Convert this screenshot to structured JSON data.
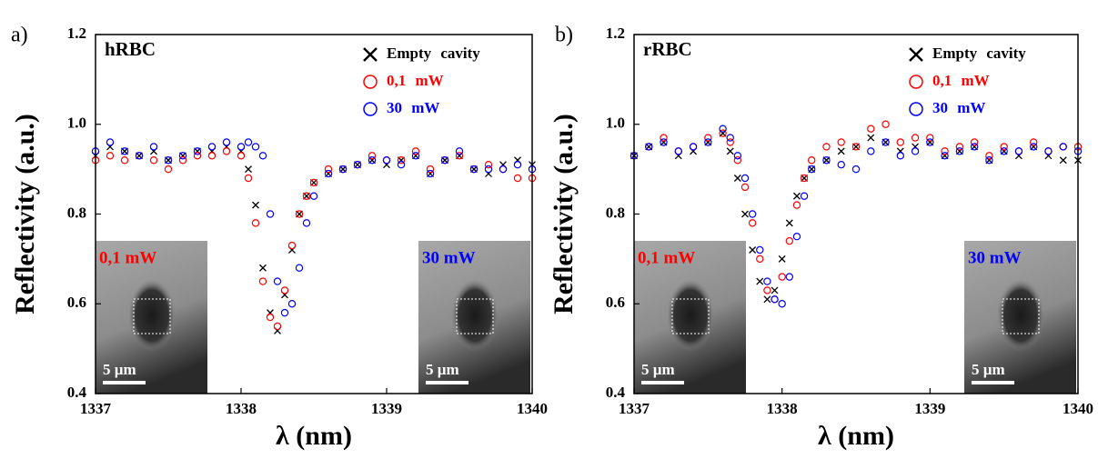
{
  "chart_data": [
    {
      "type": "scatter",
      "panel_label": "a)",
      "title": "hRBC",
      "xlabel": "λ (nm)",
      "ylabel": "Reflectivity (a.u.)",
      "x": [
        1337.0,
        1337.1,
        1337.2,
        1337.3,
        1337.4,
        1337.5,
        1337.6,
        1337.7,
        1337.8,
        1337.9,
        1338.0,
        1338.05,
        1338.1,
        1338.15,
        1338.2,
        1338.25,
        1338.3,
        1338.35,
        1338.4,
        1338.45,
        1338.5,
        1338.6,
        1338.7,
        1338.8,
        1338.9,
        1339.0,
        1339.1,
        1339.2,
        1339.3,
        1339.4,
        1339.5,
        1339.6,
        1339.7,
        1339.8,
        1339.9,
        1340.0
      ],
      "series": [
        {
          "name": "Empty cavity",
          "color": "#000000",
          "marker": "x",
          "values": [
            0.93,
            0.95,
            0.94,
            0.93,
            0.94,
            0.92,
            0.93,
            0.94,
            0.94,
            0.95,
            0.94,
            0.9,
            0.82,
            0.68,
            0.58,
            0.54,
            0.62,
            0.72,
            0.8,
            0.84,
            0.87,
            0.89,
            0.9,
            0.91,
            0.92,
            0.91,
            0.92,
            0.93,
            0.89,
            0.92,
            0.93,
            0.9,
            0.89,
            0.91,
            0.92,
            0.91
          ]
        },
        {
          "name": "0,1 mW",
          "color": "#ff0000",
          "marker": "circle",
          "values": [
            0.92,
            0.93,
            0.92,
            0.93,
            0.92,
            0.9,
            0.92,
            0.93,
            0.93,
            0.94,
            0.93,
            0.88,
            0.78,
            0.65,
            0.57,
            0.55,
            0.63,
            0.73,
            0.8,
            0.84,
            0.87,
            0.9,
            0.9,
            0.91,
            0.93,
            0.92,
            0.92,
            0.94,
            0.9,
            0.92,
            0.93,
            0.9,
            0.91,
            0.9,
            0.88,
            0.88
          ]
        },
        {
          "name": "30 mW",
          "color": "#0000ff",
          "marker": "circle",
          "values": [
            0.94,
            0.96,
            0.94,
            0.93,
            0.95,
            0.92,
            0.93,
            0.94,
            0.95,
            0.96,
            0.95,
            0.96,
            0.95,
            0.93,
            0.8,
            0.65,
            0.58,
            0.6,
            0.68,
            0.78,
            0.84,
            0.89,
            0.9,
            0.91,
            0.92,
            0.92,
            0.91,
            0.93,
            0.89,
            0.92,
            0.94,
            0.9,
            0.9,
            0.9,
            0.91,
            0.9
          ]
        }
      ],
      "xlim": [
        1337,
        1340
      ],
      "xticks": [
        1337,
        1338,
        1339,
        1340
      ],
      "ylim": [
        0.4,
        1.2
      ],
      "yticks": [
        0.4,
        0.6,
        0.8,
        {
          "value": 1,
          "label": "1.0"
        },
        1.2
      ],
      "insets": [
        {
          "label": "0,1 mW",
          "color": "#ff0000",
          "scale": "5 µm",
          "position": "left"
        },
        {
          "label": "30 mW",
          "color": "#0000ff",
          "scale": "5 µm",
          "position": "right"
        }
      ]
    },
    {
      "type": "scatter",
      "panel_label": "b)",
      "title": "rRBC",
      "xlabel": "λ (nm)",
      "ylabel": "Reflectivity (a.u.)",
      "x": [
        1337.0,
        1337.1,
        1337.2,
        1337.3,
        1337.4,
        1337.5,
        1337.6,
        1337.65,
        1337.7,
        1337.75,
        1337.8,
        1337.85,
        1337.9,
        1337.95,
        1338.0,
        1338.05,
        1338.1,
        1338.15,
        1338.2,
        1338.3,
        1338.4,
        1338.5,
        1338.6,
        1338.7,
        1338.8,
        1338.9,
        1339.0,
        1339.1,
        1339.2,
        1339.3,
        1339.4,
        1339.5,
        1339.6,
        1339.7,
        1339.8,
        1339.9,
        1340.0
      ],
      "series": [
        {
          "name": "Empty cavity",
          "color": "#000000",
          "marker": "x",
          "values": [
            0.93,
            0.95,
            0.96,
            0.93,
            0.94,
            0.96,
            0.98,
            0.94,
            0.88,
            0.8,
            0.72,
            0.65,
            0.61,
            0.63,
            0.7,
            0.78,
            0.84,
            0.88,
            0.9,
            0.92,
            0.94,
            0.95,
            0.97,
            0.96,
            0.94,
            0.95,
            0.96,
            0.93,
            0.94,
            0.95,
            0.92,
            0.94,
            0.93,
            0.95,
            0.93,
            0.92,
            0.92
          ]
        },
        {
          "name": "0,1 mW",
          "color": "#ff0000",
          "marker": "circle",
          "values": [
            0.93,
            0.95,
            0.97,
            0.94,
            0.95,
            0.97,
            0.98,
            0.96,
            0.92,
            0.86,
            0.78,
            0.7,
            0.63,
            0.61,
            0.66,
            0.74,
            0.82,
            0.88,
            0.92,
            0.95,
            0.96,
            0.95,
            0.99,
            1.0,
            0.96,
            0.97,
            0.97,
            0.94,
            0.95,
            0.96,
            0.93,
            0.95,
            0.94,
            0.96,
            0.94,
            0.95,
            0.95
          ]
        },
        {
          "name": "30 mW",
          "color": "#0000ff",
          "marker": "circle",
          "values": [
            0.93,
            0.95,
            0.96,
            0.94,
            0.95,
            0.96,
            0.99,
            0.97,
            0.93,
            0.88,
            0.8,
            0.72,
            0.65,
            0.61,
            0.6,
            0.66,
            0.75,
            0.84,
            0.9,
            0.92,
            0.91,
            0.9,
            0.94,
            0.96,
            0.93,
            0.94,
            0.96,
            0.93,
            0.94,
            0.95,
            0.92,
            0.94,
            0.94,
            0.95,
            0.94,
            0.95,
            0.94
          ]
        }
      ],
      "xlim": [
        1337,
        1340
      ],
      "xticks": [
        1337,
        1338,
        1339,
        1340
      ],
      "ylim": [
        0.4,
        1.2
      ],
      "yticks": [
        0.4,
        0.6,
        0.8,
        {
          "value": 1,
          "label": "1.0"
        },
        1.2
      ],
      "insets": [
        {
          "label": "0,1 mW",
          "color": "#ff0000",
          "scale": "5 µm",
          "position": "left"
        },
        {
          "label": "30 mW",
          "color": "#0000ff",
          "scale": "5 µm",
          "position": "right"
        }
      ]
    }
  ]
}
